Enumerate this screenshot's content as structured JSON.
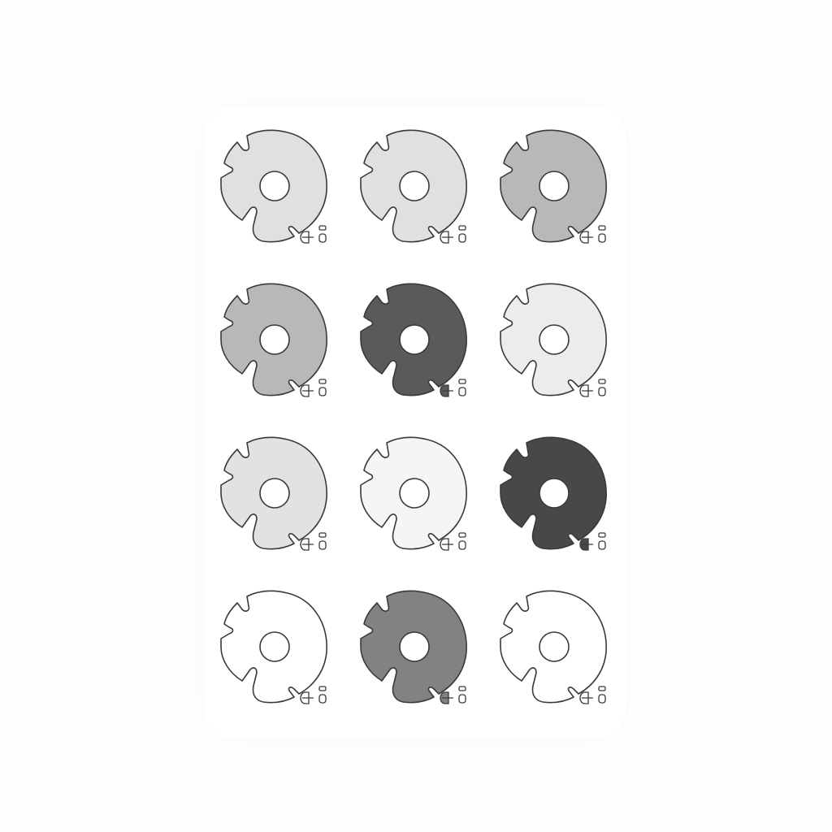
{
  "grid": {
    "rows": 4,
    "columns": 3
  },
  "stroke_color": "#3a3a3a",
  "icon": "rounded-notched-ring-icon",
  "badge_icon": "symbol-badge-icon",
  "tiles": [
    {
      "fill": "#e0e0e0",
      "badge_fill": "none"
    },
    {
      "fill": "#e0e0e0",
      "badge_fill": "none"
    },
    {
      "fill": "#b8b8b8",
      "badge_fill": "none"
    },
    {
      "fill": "#b8b8b8",
      "badge_fill": "none"
    },
    {
      "fill": "#5a5a5a",
      "badge_fill": "#5a5a5a"
    },
    {
      "fill": "#ececec",
      "badge_fill": "none"
    },
    {
      "fill": "#e2e2e2",
      "badge_fill": "none"
    },
    {
      "fill": "#f5f5f5",
      "badge_fill": "none"
    },
    {
      "fill": "#484848",
      "badge_fill": "#484848"
    },
    {
      "fill": "#ffffff",
      "badge_fill": "none"
    },
    {
      "fill": "#828282",
      "badge_fill": "#828282"
    },
    {
      "fill": "#ffffff",
      "badge_fill": "none"
    }
  ]
}
